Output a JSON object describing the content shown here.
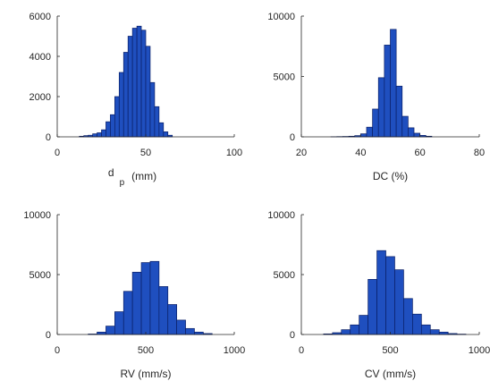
{
  "chart_data": [
    {
      "type": "bar",
      "xlabel": {
        "main": "d",
        "sub": "p",
        "unit": "(mm)"
      },
      "xlim": [
        0,
        100
      ],
      "ylim": [
        0,
        6000
      ],
      "xticks": [
        0,
        50,
        100
      ],
      "yticks": [
        0,
        2000,
        4000,
        6000
      ],
      "ytick_labels": [
        "0",
        "2000",
        "4000",
        "6000"
      ],
      "grid": false,
      "bar_color": "#1f4fbf",
      "bins": [
        {
          "left": 12.5,
          "right": 15,
          "value": 30
        },
        {
          "left": 15,
          "right": 17.5,
          "value": 60
        },
        {
          "left": 17.5,
          "right": 20,
          "value": 80
        },
        {
          "left": 20,
          "right": 22.5,
          "value": 150
        },
        {
          "left": 22.5,
          "right": 25,
          "value": 200
        },
        {
          "left": 25,
          "right": 27.5,
          "value": 350
        },
        {
          "left": 27.5,
          "right": 30,
          "value": 750
        },
        {
          "left": 30,
          "right": 32.5,
          "value": 1100
        },
        {
          "left": 32.5,
          "right": 35,
          "value": 2000
        },
        {
          "left": 35,
          "right": 37.5,
          "value": 3200
        },
        {
          "left": 37.5,
          "right": 40,
          "value": 4200
        },
        {
          "left": 40,
          "right": 42.5,
          "value": 5000
        },
        {
          "left": 42.5,
          "right": 45,
          "value": 5400
        },
        {
          "left": 45,
          "right": 47.5,
          "value": 5500
        },
        {
          "left": 47.5,
          "right": 50,
          "value": 5300
        },
        {
          "left": 50,
          "right": 52.5,
          "value": 4500
        },
        {
          "left": 52.5,
          "right": 55,
          "value": 2700
        },
        {
          "left": 55,
          "right": 57.5,
          "value": 1500
        },
        {
          "left": 57.5,
          "right": 60,
          "value": 700
        },
        {
          "left": 60,
          "right": 62.5,
          "value": 250
        },
        {
          "left": 62.5,
          "right": 65,
          "value": 80
        }
      ]
    },
    {
      "type": "bar",
      "xlabel": {
        "main": "DC (%)"
      },
      "xlim": [
        20,
        80
      ],
      "ylim": [
        0,
        10000
      ],
      "xticks": [
        20,
        40,
        60,
        80
      ],
      "yticks": [
        0,
        5000,
        10000
      ],
      "ytick_labels": [
        "0",
        "5000",
        "10000"
      ],
      "grid": false,
      "bar_color": "#1f4fbf",
      "bins": [
        {
          "left": 30,
          "right": 32,
          "value": 10
        },
        {
          "left": 32,
          "right": 34,
          "value": 20
        },
        {
          "left": 34,
          "right": 36,
          "value": 30
        },
        {
          "left": 36,
          "right": 38,
          "value": 50
        },
        {
          "left": 38,
          "right": 40,
          "value": 100
        },
        {
          "left": 40,
          "right": 42,
          "value": 250
        },
        {
          "left": 42,
          "right": 44,
          "value": 800
        },
        {
          "left": 44,
          "right": 46,
          "value": 2300
        },
        {
          "left": 46,
          "right": 48,
          "value": 4900
        },
        {
          "left": 48,
          "right": 50,
          "value": 7600
        },
        {
          "left": 50,
          "right": 52,
          "value": 8900
        },
        {
          "left": 52,
          "right": 54,
          "value": 4200
        },
        {
          "left": 54,
          "right": 56,
          "value": 1700
        },
        {
          "left": 56,
          "right": 58,
          "value": 750
        },
        {
          "left": 58,
          "right": 60,
          "value": 300
        },
        {
          "left": 60,
          "right": 62,
          "value": 120
        },
        {
          "left": 62,
          "right": 64,
          "value": 50
        }
      ]
    },
    {
      "type": "bar",
      "xlabel": {
        "main": "RV (mm/s)"
      },
      "xlim": [
        0,
        1000
      ],
      "ylim": [
        0,
        10000
      ],
      "xticks": [
        0,
        500,
        1000
      ],
      "yticks": [
        0,
        5000,
        10000
      ],
      "ytick_labels": [
        "0",
        "5000",
        "10000"
      ],
      "grid": false,
      "bar_color": "#1f4fbf",
      "bins": [
        {
          "left": 175,
          "right": 225,
          "value": 40
        },
        {
          "left": 225,
          "right": 275,
          "value": 200
        },
        {
          "left": 275,
          "right": 325,
          "value": 700
        },
        {
          "left": 325,
          "right": 375,
          "value": 1900
        },
        {
          "left": 375,
          "right": 425,
          "value": 3600
        },
        {
          "left": 425,
          "right": 475,
          "value": 5200
        },
        {
          "left": 475,
          "right": 525,
          "value": 6000
        },
        {
          "left": 525,
          "right": 575,
          "value": 6100
        },
        {
          "left": 575,
          "right": 625,
          "value": 4000
        },
        {
          "left": 625,
          "right": 675,
          "value": 2500
        },
        {
          "left": 675,
          "right": 725,
          "value": 1200
        },
        {
          "left": 725,
          "right": 775,
          "value": 500
        },
        {
          "left": 775,
          "right": 825,
          "value": 200
        },
        {
          "left": 825,
          "right": 875,
          "value": 80
        }
      ]
    },
    {
      "type": "bar",
      "xlabel": {
        "main": "CV (mm/s)"
      },
      "xlim": [
        0,
        1000
      ],
      "ylim": [
        0,
        10000
      ],
      "xticks": [
        0,
        500,
        1000
      ],
      "yticks": [
        0,
        5000,
        10000
      ],
      "ytick_labels": [
        "0",
        "5000",
        "10000"
      ],
      "grid": false,
      "bar_color": "#1f4fbf",
      "bins": [
        {
          "left": 125,
          "right": 175,
          "value": 50
        },
        {
          "left": 175,
          "right": 225,
          "value": 150
        },
        {
          "left": 225,
          "right": 275,
          "value": 400
        },
        {
          "left": 275,
          "right": 325,
          "value": 800
        },
        {
          "left": 325,
          "right": 375,
          "value": 1600
        },
        {
          "left": 375,
          "right": 425,
          "value": 4600
        },
        {
          "left": 425,
          "right": 475,
          "value": 7000
        },
        {
          "left": 475,
          "right": 525,
          "value": 6500
        },
        {
          "left": 525,
          "right": 575,
          "value": 5400
        },
        {
          "left": 575,
          "right": 625,
          "value": 3000
        },
        {
          "left": 625,
          "right": 675,
          "value": 1700
        },
        {
          "left": 675,
          "right": 725,
          "value": 800
        },
        {
          "left": 725,
          "right": 775,
          "value": 400
        },
        {
          "left": 775,
          "right": 825,
          "value": 200
        },
        {
          "left": 825,
          "right": 875,
          "value": 80
        },
        {
          "left": 875,
          "right": 925,
          "value": 30
        }
      ]
    }
  ]
}
